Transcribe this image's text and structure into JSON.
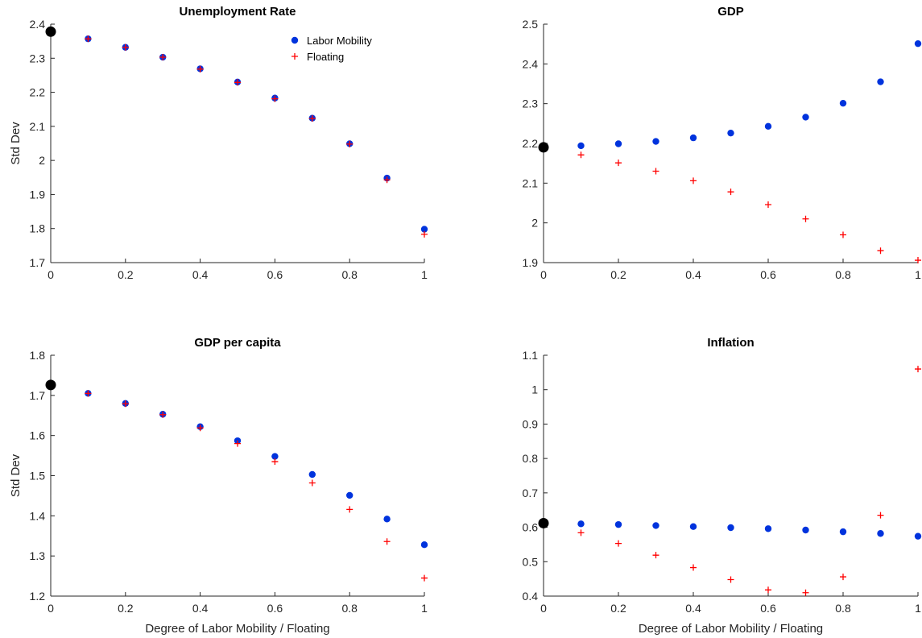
{
  "colors": {
    "mobility": "#0033dd",
    "floating": "#ff0000",
    "baseline": "#000000"
  },
  "legend": {
    "items": [
      "Labor Mobility",
      "Floating"
    ],
    "placement": "top-right",
    "panel": 0
  },
  "chart_data": [
    {
      "type": "scatter",
      "title": "Unemployment Rate",
      "xlabel": "",
      "ylabel": "Std Dev",
      "xlim": [
        0,
        1
      ],
      "ylim": [
        1.7,
        2.4
      ],
      "xticks": [
        "0",
        "0.2",
        "0.4",
        "0.6",
        "0.8",
        "1"
      ],
      "yticks": [
        "1.7",
        "1.8",
        "1.9",
        "2",
        "2.1",
        "2.2",
        "2.3",
        "2.4"
      ],
      "baseline": {
        "x": 0,
        "y": 2.378
      },
      "series": [
        {
          "name": "Labor Mobility",
          "marker": "dot",
          "x": [
            0.1,
            0.2,
            0.3,
            0.4,
            0.5,
            0.6,
            0.7,
            0.8,
            0.9,
            1.0
          ],
          "y": [
            2.357,
            2.332,
            2.303,
            2.269,
            2.23,
            2.183,
            2.124,
            2.049,
            1.948,
            1.798
          ]
        },
        {
          "name": "Floating",
          "marker": "plus",
          "x": [
            0.1,
            0.2,
            0.3,
            0.4,
            0.5,
            0.6,
            0.7,
            0.8,
            0.9,
            1.0
          ],
          "y": [
            2.357,
            2.332,
            2.303,
            2.268,
            2.229,
            2.181,
            2.123,
            2.048,
            1.943,
            1.783
          ]
        }
      ]
    },
    {
      "type": "scatter",
      "title": "GDP",
      "xlabel": "",
      "ylabel": "",
      "xlim": [
        0,
        1
      ],
      "ylim": [
        1.9,
        2.5
      ],
      "xticks": [
        "0",
        "0.2",
        "0.4",
        "0.6",
        "0.8",
        "1"
      ],
      "yticks": [
        "1.9",
        "2",
        "2.1",
        "2.2",
        "2.3",
        "2.4",
        "2.5"
      ],
      "baseline": {
        "x": 0,
        "y": 2.19
      },
      "series": [
        {
          "name": "Labor Mobility",
          "marker": "dot",
          "x": [
            0.1,
            0.2,
            0.3,
            0.4,
            0.5,
            0.6,
            0.7,
            0.8,
            0.9,
            1.0
          ],
          "y": [
            2.194,
            2.199,
            2.205,
            2.214,
            2.226,
            2.243,
            2.266,
            2.301,
            2.355,
            2.451
          ]
        },
        {
          "name": "Floating",
          "marker": "plus",
          "x": [
            0.1,
            0.2,
            0.3,
            0.4,
            0.5,
            0.6,
            0.7,
            0.8,
            0.9,
            1.0
          ],
          "y": [
            2.171,
            2.151,
            2.13,
            2.106,
            2.078,
            2.046,
            2.01,
            1.97,
            1.93,
            1.906
          ]
        }
      ]
    },
    {
      "type": "scatter",
      "title": "GDP per capita",
      "xlabel": "Degree of Labor Mobility / Floating",
      "ylabel": "Std Dev",
      "xlim": [
        0,
        1
      ],
      "ylim": [
        1.2,
        1.8
      ],
      "xticks": [
        "0",
        "0.2",
        "0.4",
        "0.6",
        "0.8",
        "1"
      ],
      "yticks": [
        "1.2",
        "1.3",
        "1.4",
        "1.5",
        "1.6",
        "1.7",
        "1.8"
      ],
      "baseline": {
        "x": 0,
        "y": 1.726
      },
      "series": [
        {
          "name": "Labor Mobility",
          "marker": "dot",
          "x": [
            0.1,
            0.2,
            0.3,
            0.4,
            0.5,
            0.6,
            0.7,
            0.8,
            0.9,
            1.0
          ],
          "y": [
            1.705,
            1.68,
            1.653,
            1.622,
            1.587,
            1.548,
            1.503,
            1.451,
            1.392,
            1.328
          ]
        },
        {
          "name": "Floating",
          "marker": "plus",
          "x": [
            0.1,
            0.2,
            0.3,
            0.4,
            0.5,
            0.6,
            0.7,
            0.8,
            0.9,
            1.0
          ],
          "y": [
            1.705,
            1.679,
            1.652,
            1.619,
            1.58,
            1.535,
            1.482,
            1.416,
            1.336,
            1.245
          ]
        }
      ]
    },
    {
      "type": "scatter",
      "title": "Inflation",
      "xlabel": "Degree of Labor Mobility / Floating",
      "ylabel": "",
      "xlim": [
        0,
        1
      ],
      "ylim": [
        0.4,
        1.1
      ],
      "xticks": [
        "0",
        "0.2",
        "0.4",
        "0.6",
        "0.8",
        "1"
      ],
      "yticks": [
        "0.4",
        "0.5",
        "0.6",
        "0.7",
        "0.8",
        "0.9",
        "1",
        "1.1"
      ],
      "baseline": {
        "x": 0,
        "y": 0.612
      },
      "series": [
        {
          "name": "Labor Mobility",
          "marker": "dot",
          "x": [
            0.1,
            0.2,
            0.3,
            0.4,
            0.5,
            0.6,
            0.7,
            0.8,
            0.9,
            1.0
          ],
          "y": [
            0.61,
            0.608,
            0.605,
            0.602,
            0.599,
            0.596,
            0.592,
            0.587,
            0.582,
            0.574
          ]
        },
        {
          "name": "Floating",
          "marker": "plus",
          "x": [
            0.1,
            0.2,
            0.3,
            0.4,
            0.5,
            0.6,
            0.7,
            0.8,
            0.9,
            1.0
          ],
          "y": [
            0.584,
            0.553,
            0.519,
            0.483,
            0.448,
            0.418,
            0.41,
            0.456,
            0.635,
            1.06
          ]
        }
      ]
    }
  ]
}
